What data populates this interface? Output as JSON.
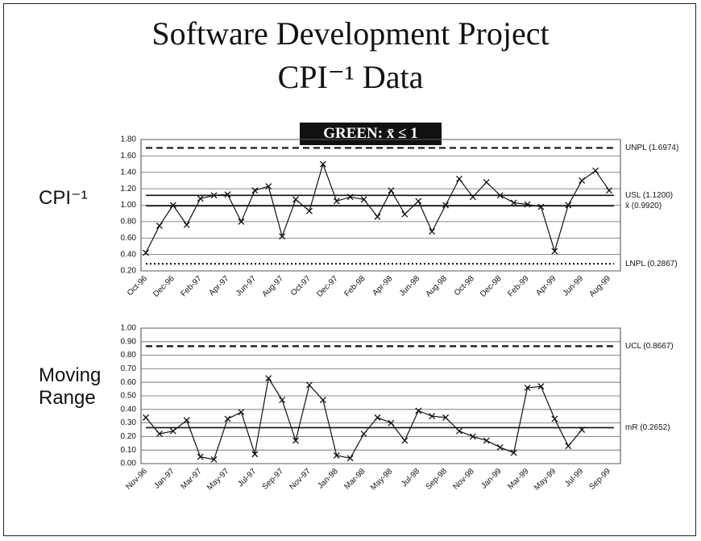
{
  "header": {
    "title": "Software Development Project",
    "subtitle": "CPI⁻¹ Data",
    "badge": "GREEN: x̄ ≤ 1"
  },
  "chart_data": [
    {
      "type": "line",
      "ylabel": "CPI⁻¹",
      "categories": [
        "Oct-96",
        null,
        "Dec-96",
        null,
        "Feb-97",
        null,
        "Apr-97",
        null,
        "Jun-97",
        null,
        "Aug-97",
        null,
        "Oct-97",
        null,
        "Dec-97",
        null,
        "Feb-98",
        null,
        "Apr-98",
        null,
        "Jun-98",
        null,
        "Aug-98",
        null,
        "Oct-98",
        null,
        "Dec-98",
        null,
        "Feb-99",
        null,
        "Apr-99",
        null,
        "Jun-99",
        null,
        "Aug-99"
      ],
      "values": [
        0.42,
        0.75,
        1.0,
        0.76,
        1.08,
        1.12,
        1.13,
        0.8,
        1.18,
        1.23,
        0.62,
        1.07,
        0.93,
        1.5,
        1.05,
        1.1,
        1.07,
        0.86,
        1.18,
        0.89,
        1.05,
        0.68,
        1.0,
        1.32,
        1.1,
        1.28,
        1.12,
        1.03,
        1.01,
        0.98,
        0.44,
        1.0,
        1.3,
        1.42,
        1.18
      ],
      "color": "#111111",
      "ylim": [
        0.2,
        1.8
      ],
      "yticks": [
        {
          "value": 0.2,
          "label": "0.20"
        },
        {
          "value": 0.4,
          "label": "0.40"
        },
        {
          "value": 0.6,
          "label": "0.60"
        },
        {
          "value": 0.8,
          "label": "0.80"
        },
        {
          "value": 1.0,
          "label": "1.00"
        },
        {
          "value": 1.2,
          "label": "1.20"
        },
        {
          "value": 1.4,
          "label": "1.40"
        },
        {
          "value": 1.6,
          "label": "1.60"
        },
        {
          "value": 1.8,
          "label": "1.80"
        }
      ],
      "grid": true,
      "lines": [
        {
          "label": "UNPL (1.6974)",
          "value": 1.6974,
          "style": "dashed"
        },
        {
          "label": "USL (1.1200)",
          "value": 1.12,
          "style": "solid"
        },
        {
          "label": "x̄ (0.9920)",
          "value": 0.992,
          "style": "solid"
        },
        {
          "label": "LNPL (0.2867)",
          "value": 0.2867,
          "style": "dotted"
        }
      ]
    },
    {
      "type": "line",
      "ylabel": "Moving Range",
      "categories": [
        "Nov-96",
        null,
        "Jan-97",
        null,
        "Mar-97",
        null,
        "May-97",
        null,
        "Jul-97",
        null,
        "Sep-97",
        null,
        "Nov-97",
        null,
        "Jan-98",
        null,
        "Mar-98",
        null,
        "May-98",
        null,
        "Jul-98",
        null,
        "Sep-98",
        null,
        "Nov-98",
        null,
        "Jan-99",
        null,
        "Mar-99",
        null,
        "May-99",
        null,
        "Jul-99",
        null,
        "Sep-99"
      ],
      "values": [
        0.34,
        0.22,
        0.24,
        0.32,
        0.05,
        0.03,
        0.33,
        0.38,
        0.07,
        0.63,
        0.47,
        0.17,
        0.58,
        0.47,
        0.06,
        0.04,
        0.22,
        0.34,
        0.3,
        0.17,
        0.39,
        0.35,
        0.34,
        0.24,
        0.2,
        0.17,
        0.12,
        0.08,
        0.56,
        0.57,
        0.33,
        0.13,
        0.25,
        null,
        null
      ],
      "color": "#111111",
      "ylim": [
        0,
        1
      ],
      "yticks": [
        {
          "value": 0,
          "label": "0.00"
        },
        {
          "value": 0.1,
          "label": "0.10"
        },
        {
          "value": 0.2,
          "label": "0.20"
        },
        {
          "value": 0.3,
          "label": "0.30"
        },
        {
          "value": 0.4,
          "label": "0.40"
        },
        {
          "value": 0.5,
          "label": "0.50"
        },
        {
          "value": 0.6,
          "label": "0.60"
        },
        {
          "value": 0.7,
          "label": "0.70"
        },
        {
          "value": 0.8,
          "label": "0.80"
        },
        {
          "value": 0.9,
          "label": "0.90"
        },
        {
          "value": 1.0,
          "label": "1.00"
        }
      ],
      "grid": true,
      "lines": [
        {
          "label": "UCL (0.8667)",
          "value": 0.8667,
          "style": "dashed"
        },
        {
          "label": "mR (0.2652)",
          "value": 0.2652,
          "style": "solid"
        }
      ]
    }
  ]
}
